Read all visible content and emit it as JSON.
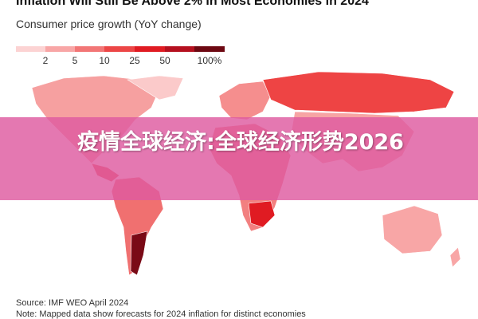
{
  "header": {
    "title": "Inflation Will Still Be Above 2% in Most Economies in 2024",
    "subtitle": "Consumer price growth (YoY change)"
  },
  "legend": {
    "labels": [
      "2",
      "5",
      "10",
      "25",
      "50",
      "100%"
    ]
  },
  "banner": {
    "text": "疫情全球经济:全球经济形势2026"
  },
  "footer": {
    "source": "Source: IMF WEO April 2024",
    "note": "Note: Mapped data show forecasts for 2024 inflation for distinct economies"
  }
}
